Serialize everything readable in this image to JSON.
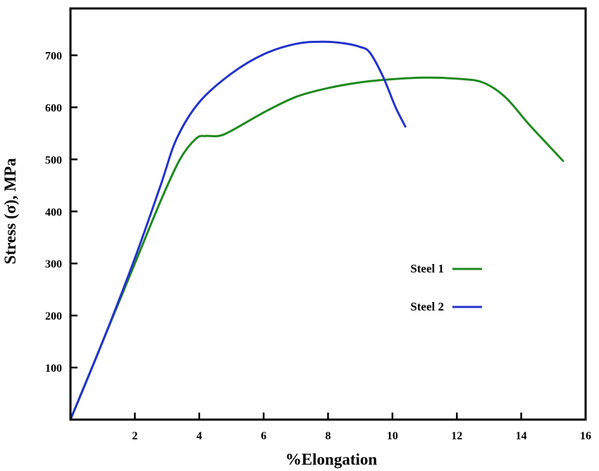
{
  "chart_data": {
    "type": "line",
    "title": "",
    "xlabel": "%Elongation",
    "ylabel": "Stress (σ), MPa",
    "xlim": [
      0,
      16
    ],
    "ylim": [
      0,
      790
    ],
    "x_ticks": [
      2,
      4,
      6,
      8,
      10,
      12,
      14,
      16
    ],
    "y_ticks": [
      100,
      200,
      300,
      400,
      500,
      600,
      700
    ],
    "grid": false,
    "legend": "center-right",
    "series": [
      {
        "name": "Steel 1",
        "color": "#1e8a1e",
        "x": [
          0,
          1,
          2,
          2.8,
          3.4,
          3.9,
          4.2,
          4.6,
          5,
          6,
          7,
          8,
          9,
          10,
          11,
          12,
          12.8,
          13.5,
          14.2,
          14.8,
          15.3
        ],
        "y": [
          0,
          150,
          300,
          420,
          500,
          540,
          545,
          545,
          555,
          590,
          620,
          637,
          648,
          654,
          657,
          655,
          648,
          620,
          570,
          530,
          497
        ]
      },
      {
        "name": "Steel 2",
        "color": "#2233cc",
        "x": [
          0,
          1,
          2,
          2.8,
          3.3,
          4,
          5,
          6,
          7,
          7.8,
          8.5,
          9,
          9.3,
          9.7,
          10.1,
          10.4
        ],
        "y": [
          0,
          150,
          310,
          450,
          540,
          610,
          665,
          702,
          722,
          726,
          723,
          716,
          705,
          660,
          600,
          563
        ]
      }
    ]
  }
}
